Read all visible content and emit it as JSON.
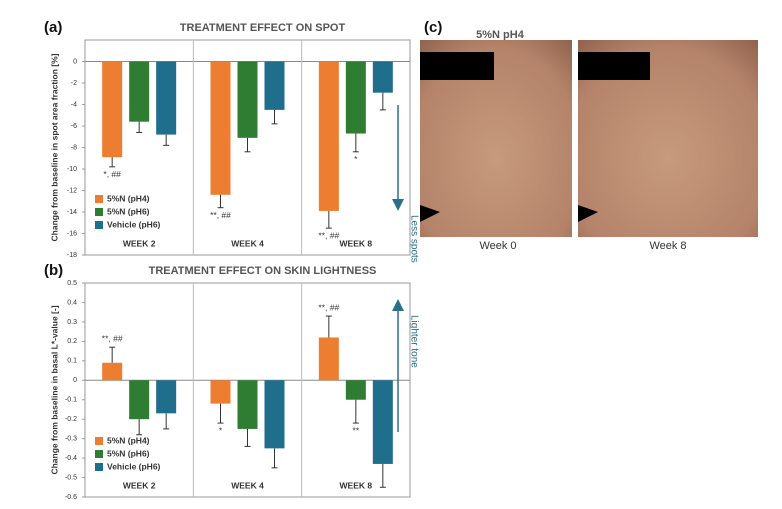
{
  "panels": [
    "(a)",
    "(b)",
    "(c)"
  ],
  "chart_data": [
    {
      "type": "bar",
      "title": "TREATMENT EFFECT ON SPOT",
      "y_label": "Change from baseline in spot area fraction [%]",
      "side_note": "Less spots",
      "categories": [
        "WEEK 2",
        "WEEK 4",
        "WEEK 8"
      ],
      "ylim": [
        -18,
        2
      ],
      "yticks": [
        0,
        -2,
        -4,
        -6,
        -8,
        -10,
        -12,
        -14,
        -16,
        -18
      ],
      "series": [
        {
          "name": "5%N (pH4)",
          "color": "#ed7d31",
          "values": [
            -8.9,
            -12.4,
            -13.9
          ],
          "errors": [
            0.9,
            1.2,
            1.6
          ],
          "labels": [
            "*, ##",
            "**, ##",
            "**, ##"
          ]
        },
        {
          "name": "5%N (pH6)",
          "color": "#2e7d32",
          "values": [
            -5.6,
            -7.1,
            -6.7
          ],
          "errors": [
            1.0,
            1.3,
            1.7
          ],
          "labels": [
            null,
            null,
            "*"
          ]
        },
        {
          "name": "Vehicle (pH6)",
          "color": "#1f6e8c",
          "values": [
            -6.8,
            -4.5,
            -2.9
          ],
          "errors": [
            1.0,
            1.3,
            1.6
          ],
          "labels": [
            null,
            null,
            null
          ]
        }
      ],
      "legend": "lower-left"
    },
    {
      "type": "bar",
      "title": "TREATMENT EFFECT ON SKIN LIGHTNESS",
      "y_label": "Change from baseline in basal L*-value [-]",
      "side_note": "Lighter tone",
      "categories": [
        "WEEK 2",
        "WEEK 4",
        "WEEK 8"
      ],
      "ylim": [
        -0.6,
        0.5
      ],
      "yticks": [
        0.5,
        0.4,
        0.3,
        0.2,
        0.1,
        0,
        -0.1,
        -0.2,
        -0.3,
        -0.4,
        -0.5,
        -0.6
      ],
      "series": [
        {
          "name": "5%N (pH4)",
          "color": "#ed7d31",
          "values": [
            0.09,
            -0.12,
            0.22
          ],
          "errors": [
            0.08,
            0.1,
            0.11
          ],
          "labels": [
            "**, ##",
            "*",
            "**, ##"
          ]
        },
        {
          "name": "5%N (pH6)",
          "color": "#2e7d32",
          "values": [
            -0.2,
            -0.25,
            -0.1
          ],
          "errors": [
            0.08,
            0.09,
            0.12
          ],
          "labels": [
            null,
            null,
            "**"
          ]
        },
        {
          "name": "Vehicle (pH6)",
          "color": "#1f6e8c",
          "values": [
            -0.17,
            -0.35,
            -0.43
          ],
          "errors": [
            0.08,
            0.1,
            0.12
          ],
          "labels": [
            null,
            null,
            null
          ]
        }
      ],
      "legend": "lower-left"
    }
  ],
  "photos": {
    "title": "5%N pH4",
    "captions": [
      "Week 0",
      "Week 8"
    ]
  }
}
